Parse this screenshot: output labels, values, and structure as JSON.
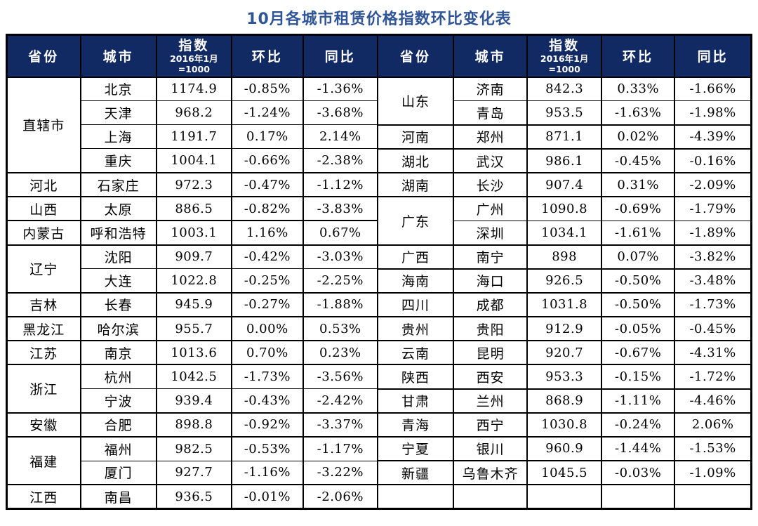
{
  "title": "10月各城市租赁价格指数环比变化表",
  "colors": {
    "title_text": "#2F5597",
    "header_bg": "#122A64",
    "header_text": "#FFFFFF",
    "border": "#000000",
    "cell_text": "#000000",
    "page_bg": "#FFFFFF"
  },
  "chart_data": {
    "type": "table",
    "title": "10月各城市租赁价格指数环比变化表",
    "header": {
      "province": "省份",
      "city": "城市",
      "index": "指数",
      "index_sub": "2016年1月=1000",
      "mom": "环比",
      "yoy": "同比"
    },
    "left_groups": [
      {
        "province": "直辖市",
        "rows": [
          [
            "北京",
            "1174.9",
            "-0.85%",
            "-1.36%"
          ],
          [
            "天津",
            "968.2",
            "-1.24%",
            "-3.68%"
          ],
          [
            "上海",
            "1191.7",
            "0.17%",
            "2.14%"
          ],
          [
            "重庆",
            "1004.1",
            "-0.66%",
            "-2.38%"
          ]
        ]
      },
      {
        "province": "河北",
        "rows": [
          [
            "石家庄",
            "972.3",
            "-0.47%",
            "-1.12%"
          ]
        ]
      },
      {
        "province": "山西",
        "rows": [
          [
            "太原",
            "886.5",
            "-0.82%",
            "-3.83%"
          ]
        ]
      },
      {
        "province": "内蒙古",
        "rows": [
          [
            "呼和浩特",
            "1003.1",
            "1.16%",
            "0.67%"
          ]
        ]
      },
      {
        "province": "辽宁",
        "rows": [
          [
            "沈阳",
            "909.7",
            "-0.42%",
            "-3.03%"
          ],
          [
            "大连",
            "1022.8",
            "-0.25%",
            "-2.25%"
          ]
        ]
      },
      {
        "province": "吉林",
        "rows": [
          [
            "长春",
            "945.9",
            "-0.27%",
            "-1.88%"
          ]
        ]
      },
      {
        "province": "黑龙江",
        "rows": [
          [
            "哈尔滨",
            "955.7",
            "0.00%",
            "0.53%"
          ]
        ]
      },
      {
        "province": "江苏",
        "rows": [
          [
            "南京",
            "1013.6",
            "0.70%",
            "0.23%"
          ]
        ]
      },
      {
        "province": "浙江",
        "rows": [
          [
            "杭州",
            "1042.5",
            "-1.73%",
            "-3.56%"
          ],
          [
            "宁波",
            "939.4",
            "-0.43%",
            "-2.42%"
          ]
        ]
      },
      {
        "province": "安徽",
        "rows": [
          [
            "合肥",
            "898.8",
            "-0.92%",
            "-3.37%"
          ]
        ]
      },
      {
        "province": "福建",
        "rows": [
          [
            "福州",
            "982.5",
            "-0.53%",
            "-1.17%"
          ],
          [
            "厦门",
            "927.7",
            "-1.16%",
            "-3.22%"
          ]
        ]
      },
      {
        "province": "江西",
        "rows": [
          [
            "南昌",
            "936.5",
            "-0.01%",
            "-2.06%"
          ]
        ]
      }
    ],
    "right_groups": [
      {
        "province": "山东",
        "rows": [
          [
            "济南",
            "842.3",
            "0.33%",
            "-1.66%"
          ],
          [
            "青岛",
            "953.5",
            "-1.63%",
            "-1.98%"
          ]
        ]
      },
      {
        "province": "河南",
        "rows": [
          [
            "郑州",
            "871.1",
            "0.02%",
            "-4.39%"
          ]
        ]
      },
      {
        "province": "湖北",
        "rows": [
          [
            "武汉",
            "986.1",
            "-0.45%",
            "-0.16%"
          ]
        ]
      },
      {
        "province": "湖南",
        "rows": [
          [
            "长沙",
            "907.4",
            "0.31%",
            "-2.09%"
          ]
        ]
      },
      {
        "province": "广东",
        "rows": [
          [
            "广州",
            "1090.8",
            "-0.69%",
            "-1.79%"
          ],
          [
            "深圳",
            "1034.1",
            "-1.61%",
            "-1.89%"
          ]
        ]
      },
      {
        "province": "广西",
        "rows": [
          [
            "南宁",
            "898",
            "0.07%",
            "-3.82%"
          ]
        ]
      },
      {
        "province": "海南",
        "rows": [
          [
            "海口",
            "926.5",
            "-0.50%",
            "-3.48%"
          ]
        ]
      },
      {
        "province": "四川",
        "rows": [
          [
            "成都",
            "1031.8",
            "-0.50%",
            "-1.73%"
          ]
        ]
      },
      {
        "province": "贵州",
        "rows": [
          [
            "贵阳",
            "912.9",
            "-0.05%",
            "-0.45%"
          ]
        ]
      },
      {
        "province": "云南",
        "rows": [
          [
            "昆明",
            "920.7",
            "-0.67%",
            "-4.31%"
          ]
        ]
      },
      {
        "province": "陕西",
        "rows": [
          [
            "西安",
            "953.3",
            "-0.15%",
            "-1.72%"
          ]
        ]
      },
      {
        "province": "甘肃",
        "rows": [
          [
            "兰州",
            "868.9",
            "-1.11%",
            "-4.46%"
          ]
        ]
      },
      {
        "province": "青海",
        "rows": [
          [
            "西宁",
            "1030.8",
            "-0.24%",
            "2.06%"
          ]
        ]
      },
      {
        "province": "宁夏",
        "rows": [
          [
            "银川",
            "960.9",
            "-1.44%",
            "-1.53%"
          ]
        ]
      },
      {
        "province": "新疆",
        "rows": [
          [
            "乌鲁木齐",
            "1045.5",
            "-0.03%",
            "-1.09%"
          ]
        ]
      },
      {
        "province": "",
        "rows": [
          [
            "",
            "",
            "",
            ""
          ]
        ]
      }
    ]
  }
}
